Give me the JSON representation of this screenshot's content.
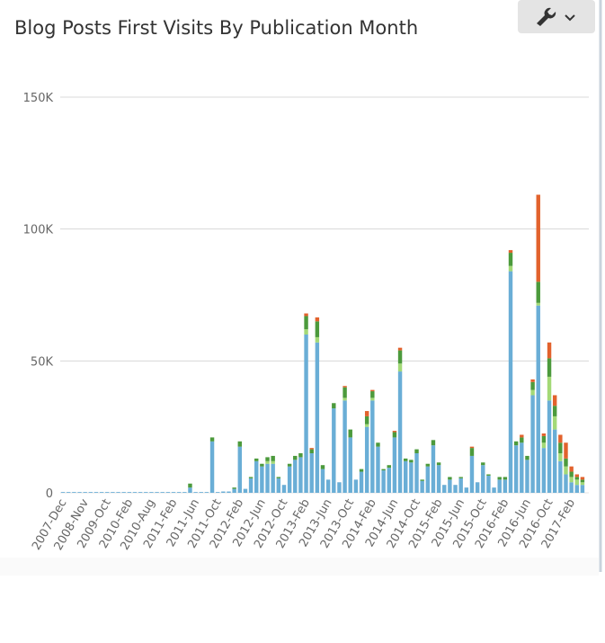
{
  "chart_data": {
    "type": "stacked-bar",
    "title": "Blog Posts First Visits By Publication Month",
    "categories": [
      "2007-Dec",
      null,
      null,
      null,
      "2008-Nov",
      null,
      null,
      null,
      "2009-Oct",
      null,
      null,
      null,
      "2010-Feb",
      null,
      null,
      null,
      "2010-Aug",
      null,
      null,
      null,
      "2011-Feb",
      null,
      null,
      null,
      "2011-Jun",
      null,
      null,
      null,
      "2011-Oct",
      null,
      null,
      null,
      "2012-Feb",
      null,
      null,
      null,
      "2012-Jun",
      null,
      null,
      null,
      "2012-Oct",
      null,
      null,
      null,
      "2013-Feb",
      null,
      null,
      null,
      "2013-Jun",
      null,
      null,
      null,
      "2013-Oct",
      null,
      null,
      null,
      "2014-Feb",
      null,
      null,
      null,
      "2014-Jun",
      null,
      null,
      null,
      "2014-Oct",
      null,
      null,
      null,
      "2015-Feb",
      null,
      null,
      null,
      "2015-Jun",
      null,
      null,
      null,
      "2015-Oct",
      null,
      null,
      null,
      "2016-Feb",
      null,
      null,
      null,
      "2016-Jun",
      null,
      null,
      null,
      "2016-Oct",
      null,
      null,
      null,
      "2017-Feb",
      null,
      null
    ],
    "series": [
      {
        "color": "#6aaed6",
        "values": [
          300,
          300,
          300,
          300,
          300,
          300,
          300,
          300,
          300,
          300,
          300,
          300,
          300,
          300,
          300,
          300,
          300,
          300,
          300,
          300,
          300,
          300,
          300,
          2000,
          300,
          300,
          300,
          19500,
          300,
          500,
          500,
          1500,
          17500,
          1500,
          5500,
          12000,
          10000,
          11000,
          11000,
          5500,
          3000,
          10000,
          12500,
          13500,
          60000,
          15000,
          57000,
          9000,
          5000,
          32000,
          4000,
          35000,
          21000,
          5000,
          8000,
          25000,
          35000,
          17500,
          8500,
          9500,
          21000,
          46000,
          12000,
          11500,
          15000,
          4500,
          10000,
          18000,
          10500,
          3000,
          5000,
          3000,
          5500,
          2000,
          14000,
          4000,
          10500,
          6500,
          2000,
          5000,
          5000,
          84000,
          18000,
          19000,
          12500,
          37000,
          71000,
          17000,
          35000,
          24000,
          12000,
          7000,
          4000,
          3000,
          3000
        ]
      },
      {
        "color": "#a3d977",
        "values": [
          0,
          0,
          0,
          0,
          0,
          0,
          0,
          0,
          0,
          0,
          0,
          0,
          0,
          0,
          0,
          0,
          0,
          0,
          0,
          0,
          0,
          0,
          0,
          0,
          0,
          0,
          0,
          0,
          0,
          0,
          0,
          0,
          0,
          0,
          0,
          0,
          0,
          1000,
          1000,
          0,
          0,
          0,
          0,
          0,
          2000,
          0,
          2000,
          0,
          0,
          0,
          0,
          1000,
          0,
          0,
          0,
          1000,
          1000,
          0,
          0,
          0,
          0,
          3000,
          0,
          0,
          0,
          0,
          0,
          0,
          0,
          0,
          0,
          0,
          0,
          0,
          0,
          0,
          0,
          0,
          0,
          0,
          0,
          2000,
          0,
          0,
          0,
          2000,
          1000,
          2000,
          9000,
          5000,
          3000,
          3000,
          2000,
          2000,
          1000
        ]
      },
      {
        "color": "#4c9a3c",
        "values": [
          0,
          0,
          0,
          0,
          0,
          0,
          0,
          0,
          0,
          0,
          0,
          0,
          0,
          0,
          0,
          0,
          0,
          0,
          0,
          0,
          0,
          0,
          0,
          1500,
          0,
          0,
          0,
          1500,
          0,
          0,
          0,
          500,
          2000,
          0,
          500,
          1000,
          1000,
          1500,
          2000,
          500,
          0,
          1000,
          1500,
          1500,
          5000,
          1500,
          6000,
          1500,
          0,
          2000,
          0,
          4000,
          3000,
          0,
          1000,
          3000,
          2500,
          1500,
          500,
          1000,
          2000,
          5000,
          1000,
          1000,
          1500,
          500,
          1000,
          2000,
          1000,
          0,
          1000,
          0,
          500,
          0,
          3000,
          0,
          1000,
          500,
          0,
          1000,
          1000,
          5000,
          1500,
          2000,
          1500,
          3000,
          8000,
          2500,
          7000,
          4000,
          4000,
          3000,
          2000,
          1000,
          1000
        ]
      },
      {
        "color": "#e2622d",
        "values": [
          0,
          0,
          0,
          0,
          0,
          0,
          0,
          0,
          0,
          0,
          0,
          0,
          0,
          0,
          0,
          0,
          0,
          0,
          0,
          0,
          0,
          0,
          0,
          0,
          0,
          0,
          0,
          0,
          0,
          0,
          0,
          0,
          0,
          0,
          0,
          0,
          0,
          0,
          0,
          0,
          0,
          0,
          0,
          0,
          1000,
          500,
          1500,
          0,
          0,
          0,
          0,
          500,
          0,
          0,
          0,
          2000,
          500,
          0,
          0,
          0,
          500,
          1000,
          0,
          0,
          0,
          0,
          0,
          0,
          0,
          0,
          0,
          0,
          0,
          0,
          500,
          0,
          0,
          0,
          0,
          0,
          0,
          1000,
          0,
          1000,
          0,
          1000,
          33000,
          1000,
          6000,
          4000,
          3000,
          6000,
          2000,
          1000,
          1000
        ]
      }
    ],
    "ylim": [
      0,
      150000
    ],
    "yticks": [
      0,
      {
        "value": 50000,
        "label": "50K"
      },
      {
        "value": 100000,
        "label": "100K"
      },
      {
        "value": 150000,
        "label": "150K"
      }
    ],
    "grid": true
  }
}
